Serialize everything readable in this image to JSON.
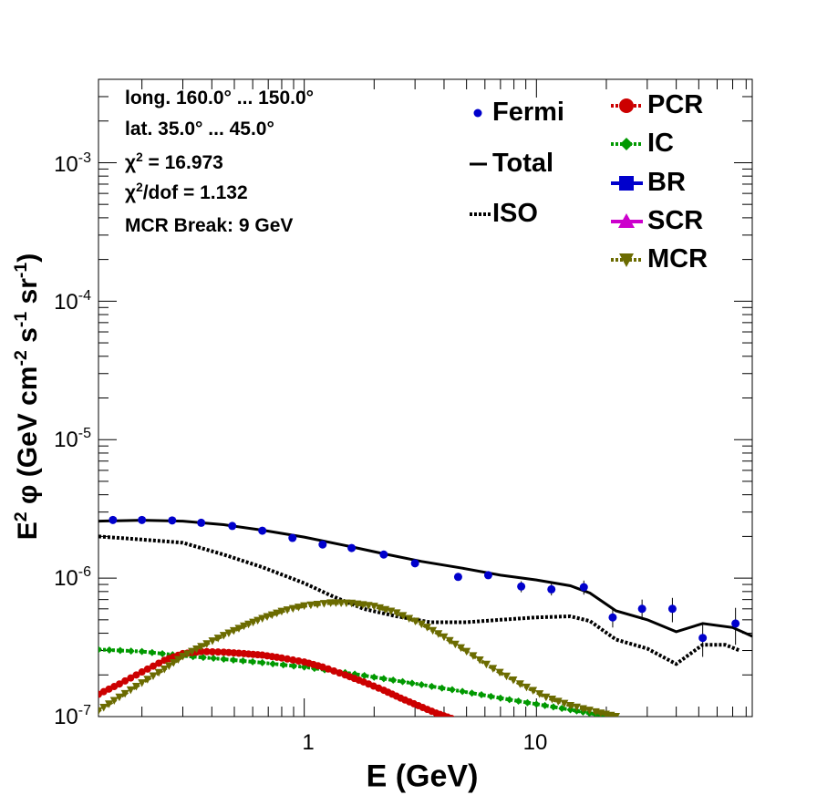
{
  "info": {
    "line1": "long. 160.0° ... 150.0°",
    "line2": "lat. 35.0° ... 45.0°",
    "chi2_symbol": "χ",
    "chi2_exp": "2",
    "chi2_value": " = 16.973",
    "chi2dof_symbol": "χ",
    "chi2dof_exp": "2",
    "chi2dof_value": "/dof = 1.132",
    "line5": "MCR Break:  9 GeV"
  },
  "legend": {
    "fermi": "Fermi",
    "total": "Total",
    "iso": "ISO",
    "pcr": "PCR",
    "ic": "IC",
    "br": "BR",
    "scr": "SCR",
    "mcr": "MCR"
  },
  "axes": {
    "y_label_main": "E",
    "y_label_e_exp": "2",
    "y_label_phi": " φ (GeV cm",
    "y_label_cm_exp": "-2",
    "y_label_s": " s",
    "y_label_s_exp": "-1",
    "y_label_sr": " sr",
    "y_label_sr_exp": "-1",
    "y_label_end": ")",
    "x_label": "E (GeV)",
    "x_tick_1": "1",
    "x_tick_10": "10",
    "y_ticks": [
      {
        "base": "10",
        "exp": "-7"
      },
      {
        "base": "10",
        "exp": "-6"
      },
      {
        "base": "10",
        "exp": "-5"
      },
      {
        "base": "10",
        "exp": "-4"
      },
      {
        "base": "10",
        "exp": "-3"
      }
    ]
  },
  "chart_data": {
    "type": "line",
    "xscale": "log",
    "yscale": "log",
    "xlim": [
      0.13,
      85
    ],
    "ylim": [
      1e-07,
      0.004
    ],
    "colors": {
      "fermi": "#0000cc",
      "total": "#000000",
      "iso": "#000000",
      "pcr": "#cc0000",
      "ic": "#009900",
      "br": "#0000cc",
      "scr": "#cc00cc",
      "mcr": "#6b6b00"
    },
    "fermi": [
      {
        "x": 0.15,
        "y": 2.63e-06,
        "err": 5e-08
      },
      {
        "x": 0.2,
        "y": 2.63e-06,
        "err": 5e-08
      },
      {
        "x": 0.27,
        "y": 2.61e-06,
        "err": 5e-08
      },
      {
        "x": 0.36,
        "y": 2.51e-06,
        "err": 5e-08
      },
      {
        "x": 0.49,
        "y": 2.38e-06,
        "err": 5e-08
      },
      {
        "x": 0.66,
        "y": 2.2e-06,
        "err": 5e-08
      },
      {
        "x": 0.89,
        "y": 1.95e-06,
        "err": 5e-08
      },
      {
        "x": 1.2,
        "y": 1.75e-06,
        "err": 5e-08
      },
      {
        "x": 1.6,
        "y": 1.65e-06,
        "err": 5e-08
      },
      {
        "x": 2.2,
        "y": 1.48e-06,
        "err": 5e-08
      },
      {
        "x": 3.0,
        "y": 1.28e-06,
        "err": 5e-08
      },
      {
        "x": 4.6,
        "y": 1.02e-06,
        "err": 5e-08
      },
      {
        "x": 6.2,
        "y": 1.05e-06,
        "err": 6e-08
      },
      {
        "x": 8.6,
        "y": 8.7e-07,
        "err": 8e-08
      },
      {
        "x": 11.6,
        "y": 8.3e-07,
        "err": 8e-08
      },
      {
        "x": 16.0,
        "y": 8.6e-07,
        "err": 1e-07
      },
      {
        "x": 21.3,
        "y": 5.2e-07,
        "err": 8e-08
      },
      {
        "x": 28.5,
        "y": 6e-07,
        "err": 1e-07
      },
      {
        "x": 38.5,
        "y": 6e-07,
        "err": 1.2e-07
      },
      {
        "x": 52.0,
        "y": 3.7e-07,
        "err": 1e-07
      },
      {
        "x": 72.0,
        "y": 4.7e-07,
        "err": 1.4e-07
      }
    ],
    "total": [
      {
        "x": 0.13,
        "y": 2.58e-06
      },
      {
        "x": 0.2,
        "y": 2.62e-06
      },
      {
        "x": 0.3,
        "y": 2.58e-06
      },
      {
        "x": 0.45,
        "y": 2.43e-06
      },
      {
        "x": 0.66,
        "y": 2.22e-06
      },
      {
        "x": 1.0,
        "y": 1.98e-06
      },
      {
        "x": 1.5,
        "y": 1.72e-06
      },
      {
        "x": 2.2,
        "y": 1.5e-06
      },
      {
        "x": 3.2,
        "y": 1.32e-06
      },
      {
        "x": 4.8,
        "y": 1.18e-06
      },
      {
        "x": 7.0,
        "y": 1.05e-06
      },
      {
        "x": 10.0,
        "y": 9.7e-07
      },
      {
        "x": 14.0,
        "y": 8.8e-07
      },
      {
        "x": 17.0,
        "y": 7.8e-07
      },
      {
        "x": 22.0,
        "y": 5.8e-07
      },
      {
        "x": 30.0,
        "y": 5e-07
      },
      {
        "x": 40.0,
        "y": 4.1e-07
      },
      {
        "x": 52.0,
        "y": 4.7e-07
      },
      {
        "x": 70.0,
        "y": 4.4e-07
      },
      {
        "x": 85.0,
        "y": 3.8e-07
      }
    ],
    "iso": [
      {
        "x": 0.13,
        "y": 2e-06
      },
      {
        "x": 0.2,
        "y": 1.9e-06
      },
      {
        "x": 0.3,
        "y": 1.8e-06
      },
      {
        "x": 0.45,
        "y": 1.48e-06
      },
      {
        "x": 0.66,
        "y": 1.2e-06
      },
      {
        "x": 1.0,
        "y": 9.2e-07
      },
      {
        "x": 1.3,
        "y": 7.5e-07
      },
      {
        "x": 1.8,
        "y": 6e-07
      },
      {
        "x": 2.5,
        "y": 5.3e-07
      },
      {
        "x": 3.5,
        "y": 4.8e-07
      },
      {
        "x": 5.0,
        "y": 4.8e-07
      },
      {
        "x": 7.0,
        "y": 5e-07
      },
      {
        "x": 10.0,
        "y": 5.2e-07
      },
      {
        "x": 14.0,
        "y": 5.3e-07
      },
      {
        "x": 17.0,
        "y": 4.9e-07
      },
      {
        "x": 22.0,
        "y": 3.6e-07
      },
      {
        "x": 30.0,
        "y": 3.1e-07
      },
      {
        "x": 40.0,
        "y": 2.4e-07
      },
      {
        "x": 52.0,
        "y": 3.3e-07
      },
      {
        "x": 65.0,
        "y": 3.3e-07
      },
      {
        "x": 75.0,
        "y": 3e-07
      }
    ],
    "pcr": [
      {
        "x": 0.13,
        "y": 1.45e-07
      },
      {
        "x": 0.16,
        "y": 1.72e-07
      },
      {
        "x": 0.2,
        "y": 2.1e-07
      },
      {
        "x": 0.25,
        "y": 2.55e-07
      },
      {
        "x": 0.3,
        "y": 2.85e-07
      },
      {
        "x": 0.36,
        "y": 2.95e-07
      },
      {
        "x": 0.45,
        "y": 2.92e-07
      },
      {
        "x": 0.55,
        "y": 2.85e-07
      },
      {
        "x": 0.66,
        "y": 2.78e-07
      },
      {
        "x": 0.8,
        "y": 2.65e-07
      },
      {
        "x": 1.0,
        "y": 2.48e-07
      },
      {
        "x": 1.2,
        "y": 2.28e-07
      },
      {
        "x": 1.5,
        "y": 2e-07
      },
      {
        "x": 1.8,
        "y": 1.78e-07
      },
      {
        "x": 2.2,
        "y": 1.55e-07
      },
      {
        "x": 2.6,
        "y": 1.36e-07
      },
      {
        "x": 3.1,
        "y": 1.2e-07
      },
      {
        "x": 3.7,
        "y": 1.06e-07
      },
      {
        "x": 4.3,
        "y": 9.7e-08
      }
    ],
    "ic": [
      {
        "x": 0.13,
        "y": 3.05e-07
      },
      {
        "x": 0.2,
        "y": 2.95e-07
      },
      {
        "x": 0.3,
        "y": 2.75e-07
      },
      {
        "x": 0.45,
        "y": 2.6e-07
      },
      {
        "x": 0.66,
        "y": 2.45e-07
      },
      {
        "x": 1.0,
        "y": 2.28e-07
      },
      {
        "x": 1.5,
        "y": 2.08e-07
      },
      {
        "x": 2.2,
        "y": 1.88e-07
      },
      {
        "x": 3.2,
        "y": 1.7e-07
      },
      {
        "x": 4.8,
        "y": 1.52e-07
      },
      {
        "x": 7.0,
        "y": 1.36e-07
      },
      {
        "x": 10.0,
        "y": 1.23e-07
      },
      {
        "x": 14.0,
        "y": 1.12e-07
      },
      {
        "x": 18.0,
        "y": 1.04e-07
      },
      {
        "x": 22.0,
        "y": 9.9e-08
      }
    ],
    "mcr": [
      {
        "x": 0.13,
        "y": 1.1e-07
      },
      {
        "x": 0.16,
        "y": 1.38e-07
      },
      {
        "x": 0.2,
        "y": 1.75e-07
      },
      {
        "x": 0.25,
        "y": 2.2e-07
      },
      {
        "x": 0.3,
        "y": 2.72e-07
      },
      {
        "x": 0.36,
        "y": 3.2e-07
      },
      {
        "x": 0.45,
        "y": 3.85e-07
      },
      {
        "x": 0.55,
        "y": 4.5e-07
      },
      {
        "x": 0.66,
        "y": 5.1e-07
      },
      {
        "x": 0.8,
        "y": 5.75e-07
      },
      {
        "x": 1.0,
        "y": 6.3e-07
      },
      {
        "x": 1.3,
        "y": 6.62e-07
      },
      {
        "x": 1.6,
        "y": 6.58e-07
      },
      {
        "x": 2.0,
        "y": 6.25e-07
      },
      {
        "x": 2.5,
        "y": 5.6e-07
      },
      {
        "x": 3.2,
        "y": 4.65e-07
      },
      {
        "x": 4.0,
        "y": 3.75e-07
      },
      {
        "x": 5.0,
        "y": 2.95e-07
      },
      {
        "x": 6.5,
        "y": 2.22e-07
      },
      {
        "x": 8.5,
        "y": 1.72e-07
      },
      {
        "x": 11.0,
        "y": 1.38e-07
      },
      {
        "x": 14.0,
        "y": 1.2e-07
      },
      {
        "x": 18.0,
        "y": 1.08e-07
      },
      {
        "x": 22.0,
        "y": 1e-07
      }
    ]
  }
}
